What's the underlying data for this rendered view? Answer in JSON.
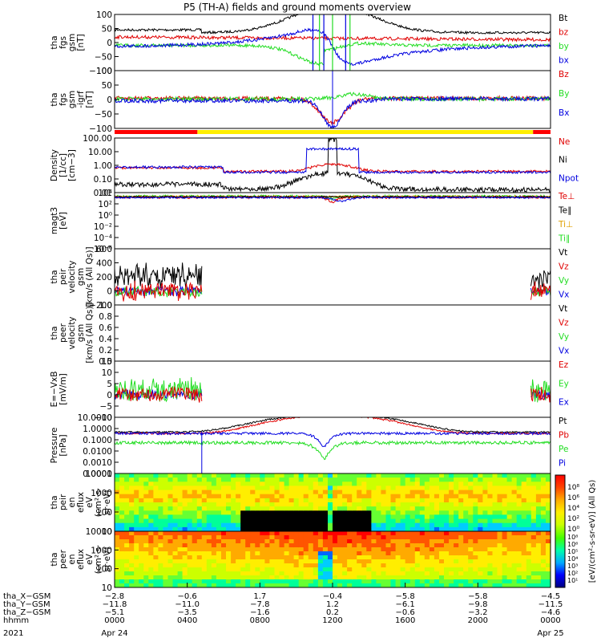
{
  "title": "P5 (TH-A) fields and ground moments overview",
  "colors": {
    "black": "#000000",
    "red": "#e00000",
    "green": "#22dd22",
    "blue": "#0000e0",
    "yellow": "#ffee00",
    "hotred": "#ff0000"
  },
  "chart_data": {
    "type": "line",
    "time_ticks": [
      "0000",
      "0400",
      "0800",
      "1200",
      "1600",
      "2000",
      "0000"
    ],
    "date_labels": [
      "Apr 24",
      "Apr 25"
    ],
    "year_label": "2021",
    "panels": [
      {
        "id": "fgs",
        "ylabel": [
          "tha",
          "fgs",
          "gsm",
          "[nT]"
        ],
        "ylim": [
          -100,
          100
        ],
        "yticks": [
          "100",
          "50",
          "0",
          "−50",
          "−100"
        ],
        "legend": [
          {
            "name": "Bt",
            "color": "#000000"
          },
          {
            "name": "bz",
            "color": "#e00000"
          },
          {
            "name": "by",
            "color": "#22dd22"
          },
          {
            "name": "bx",
            "color": "#0000e0"
          }
        ]
      },
      {
        "id": "fgs_dipole",
        "ylabel": [
          "tha",
          "fgs",
          "gsm",
          "-igrf",
          "[nT]"
        ],
        "ylim": [
          -120,
          120
        ],
        "yticks": [
          "100",
          "50",
          "0",
          "−50",
          "−100"
        ],
        "legend": [
          {
            "name": "Bz",
            "color": "#e00000"
          },
          {
            "name": "By",
            "color": "#22dd22"
          },
          {
            "name": "Bx",
            "color": "#0000e0"
          }
        ]
      },
      {
        "id": "density",
        "ylabel": [
          "Density",
          "[1/cc]",
          "[cm−3]"
        ],
        "log": true,
        "yticks": [
          "100.00",
          "10.00",
          "1.00",
          "0.10",
          "0.01"
        ],
        "legend": [
          {
            "name": "Ne",
            "color": "#e00000"
          },
          {
            "name": "Ni",
            "color": "#000000"
          },
          {
            "name": "Npot",
            "color": "#0000e0"
          }
        ]
      },
      {
        "id": "temperature",
        "ylabel": [
          "magt3",
          "[eV]"
        ],
        "log": true,
        "yticks": [
          "10⁴",
          "10²",
          "10⁰",
          "10⁻²",
          "10⁻⁴",
          "10⁻⁶"
        ],
        "legend": [
          {
            "name": "Te⊥",
            "color": "#e00000"
          },
          {
            "name": "Te∥",
            "color": "#000000"
          },
          {
            "name": "Ti⊥",
            "color": "#e0a000"
          },
          {
            "name": "Ti∥",
            "color": "#22dd22"
          }
        ]
      },
      {
        "id": "peir_velocity",
        "ylabel": [
          "tha",
          "peir",
          "velocity",
          "gsm",
          "[km/s (All Qs)]"
        ],
        "ylim": [
          -200,
          600
        ],
        "yticks": [
          "600",
          "400",
          "200",
          "0",
          "−200"
        ],
        "legend": [
          {
            "name": "Vt",
            "color": "#000000"
          },
          {
            "name": "Vz",
            "color": "#e00000"
          },
          {
            "name": "Vy",
            "color": "#22dd22"
          },
          {
            "name": "Vx",
            "color": "#0000e0"
          }
        ]
      },
      {
        "id": "peer_velocity",
        "ylabel": [
          "tha",
          "peer",
          "velocity",
          "gsm",
          "[km/s (All Qs)]"
        ],
        "ylim": [
          0,
          1
        ],
        "yticks": [
          "1.0",
          "0.8",
          "0.6",
          "0.4",
          "0.2",
          "0.0"
        ],
        "legend": [
          {
            "name": "Vt",
            "color": "#000000"
          },
          {
            "name": "Vz",
            "color": "#e00000"
          },
          {
            "name": "Vy",
            "color": "#22dd22"
          },
          {
            "name": "Vx",
            "color": "#0000e0"
          }
        ]
      },
      {
        "id": "efield",
        "ylabel": [
          "E=−VxB",
          "[mV/m]"
        ],
        "ylim": [
          -10,
          15
        ],
        "yticks": [
          "15",
          "10",
          "5",
          "0",
          "−5",
          "−10"
        ],
        "legend": [
          {
            "name": "Ez",
            "color": "#e00000"
          },
          {
            "name": "Ey",
            "color": "#22dd22"
          },
          {
            "name": "Ex",
            "color": "#0000e0"
          }
        ]
      },
      {
        "id": "pressure",
        "ylabel": [
          "Pressure",
          "[nPa]"
        ],
        "log": true,
        "yticks": [
          "10.0000",
          "1.0000",
          "0.1000",
          "0.0100",
          "0.0010",
          "0.0001"
        ],
        "legend": [
          {
            "name": "Pt",
            "color": "#000000"
          },
          {
            "name": "Pb",
            "color": "#e00000"
          },
          {
            "name": "Pe",
            "color": "#22dd22"
          },
          {
            "name": "Pi",
            "color": "#0000e0"
          }
        ]
      },
      {
        "id": "peir_spec",
        "ylabel": [
          "tha",
          "peir",
          "en",
          "eflux",
          "eV",
          "(cm²·s·",
          "sr·eV)"
        ],
        "yticks": [
          "10000",
          "1000",
          "100",
          "10"
        ]
      },
      {
        "id": "peer_spec",
        "ylabel": [
          "tha",
          "peer",
          "en",
          "eflux",
          "eV",
          "(cm²·s·",
          "sr·eV)"
        ],
        "yticks": [
          "10000",
          "1000",
          "100",
          "10"
        ]
      }
    ],
    "colorbar": {
      "label": "[eV/(cm²-s-sr-eV)] (All Qs)",
      "ticks_top": [
        "10⁸",
        "10⁶",
        "10⁴",
        "10²",
        "10⁰"
      ],
      "ticks_bottom": [
        "10⁸",
        "10⁶",
        "10⁵",
        "10⁴",
        "10³",
        "10²",
        "10¹"
      ]
    },
    "ephemeris": {
      "labels": [
        "tha_X−GSM",
        "tha_Y−GSM",
        "tha_Z−GSM",
        "hhmm"
      ],
      "rows": [
        [
          "−2.8",
          "−0.6",
          "1.7",
          "−0.4",
          "−5.8",
          "−5.8",
          "−4.5"
        ],
        [
          "−11.8",
          "−11.0",
          "−7.8",
          "1.2",
          "−6.1",
          "−9.8",
          "−11.5"
        ],
        [
          "−5.1",
          "−3.5",
          "−1.6",
          "0.2",
          "−0.6",
          "−3.2",
          "−4.6"
        ],
        [
          "0000",
          "0400",
          "0800",
          "1200",
          "1600",
          "2000",
          "0000"
        ]
      ]
    }
  }
}
